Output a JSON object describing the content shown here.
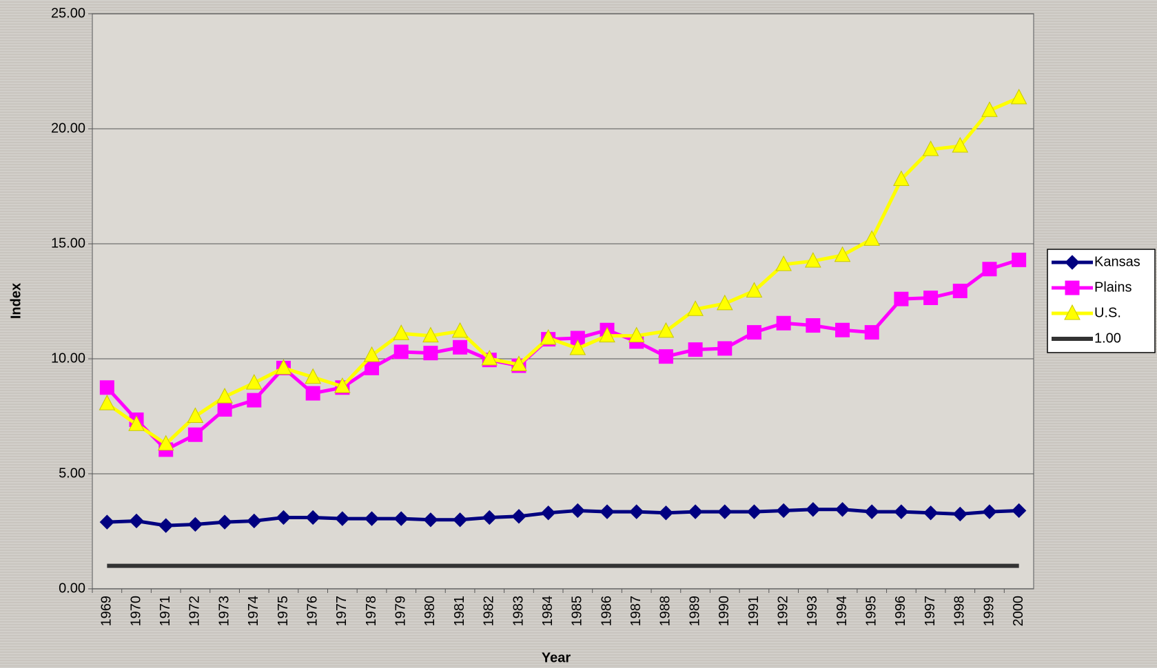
{
  "chart_data": {
    "type": "line",
    "x_label": "Year",
    "y_label": "Index",
    "categories": [
      "1969",
      "1970",
      "1971",
      "1972",
      "1973",
      "1974",
      "1975",
      "1976",
      "1977",
      "1978",
      "1979",
      "1980",
      "1981",
      "1982",
      "1983",
      "1984",
      "1985",
      "1986",
      "1987",
      "1988",
      "1989",
      "1990",
      "1991",
      "1992",
      "1993",
      "1994",
      "1995",
      "1996",
      "1997",
      "1998",
      "1999",
      "2000"
    ],
    "series": [
      {
        "name": "Kansas",
        "color": "#000080",
        "marker": "diamond",
        "values": [
          2.9,
          2.95,
          2.75,
          2.8,
          2.9,
          2.95,
          3.1,
          3.1,
          3.05,
          3.05,
          3.05,
          3.0,
          3.0,
          3.1,
          3.15,
          3.3,
          3.4,
          3.35,
          3.35,
          3.3,
          3.35,
          3.35,
          3.35,
          3.4,
          3.45,
          3.45,
          3.35,
          3.35,
          3.3,
          3.25,
          3.35,
          3.4
        ]
      },
      {
        "name": "Plains",
        "color": "#ff00ff",
        "marker": "square",
        "values": [
          8.75,
          7.35,
          6.05,
          6.7,
          7.8,
          8.2,
          9.6,
          8.5,
          8.75,
          9.6,
          10.3,
          10.25,
          10.5,
          9.95,
          9.7,
          10.85,
          10.9,
          11.25,
          10.75,
          10.1,
          10.4,
          10.45,
          11.15,
          11.55,
          11.45,
          11.25,
          11.15,
          12.6,
          12.65,
          12.95,
          13.9,
          14.3
        ]
      },
      {
        "name": "U.S.",
        "color": "#ffff00",
        "marker": "triangle",
        "values": [
          8.05,
          7.15,
          6.3,
          7.5,
          8.35,
          8.95,
          9.6,
          9.2,
          8.8,
          10.15,
          11.1,
          11.0,
          11.2,
          10.0,
          9.75,
          10.9,
          10.45,
          11.0,
          11.0,
          11.2,
          12.15,
          12.4,
          12.95,
          14.1,
          14.25,
          14.5,
          15.2,
          17.8,
          19.1,
          19.25,
          20.8,
          21.35
        ]
      },
      {
        "name": "1.00",
        "color": "#333333",
        "marker": "none",
        "values": [
          1,
          1,
          1,
          1,
          1,
          1,
          1,
          1,
          1,
          1,
          1,
          1,
          1,
          1,
          1,
          1,
          1,
          1,
          1,
          1,
          1,
          1,
          1,
          1,
          1,
          1,
          1,
          1,
          1,
          1,
          1,
          1
        ]
      }
    ],
    "ylim": [
      0,
      25
    ],
    "yticks": [
      {
        "value": 0,
        "label": "0.00"
      },
      {
        "value": 5,
        "label": "5.00"
      },
      {
        "value": 10,
        "label": "10.00"
      },
      {
        "value": 15,
        "label": "15.00"
      },
      {
        "value": 20,
        "label": "20.00"
      },
      {
        "value": 25,
        "label": "25.00"
      }
    ],
    "grid": true,
    "legend": "right"
  }
}
